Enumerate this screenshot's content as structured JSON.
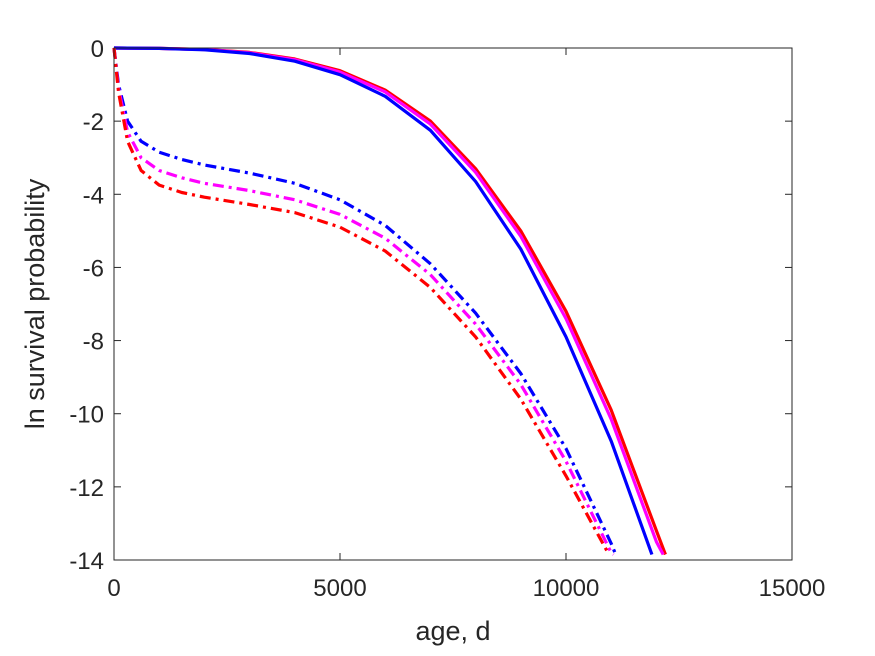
{
  "chart_data": {
    "type": "line",
    "title": "",
    "xlabel": "age, d",
    "ylabel": "ln survival probability",
    "xlim": [
      0,
      15000
    ],
    "ylim": [
      -14,
      0
    ],
    "xticks": [
      0,
      5000,
      10000,
      15000
    ],
    "yticks": [
      0,
      -2,
      -4,
      -6,
      -8,
      -10,
      -12,
      -14
    ],
    "xtick_labels": [
      "0",
      "5000",
      "10000",
      "15000"
    ],
    "ytick_labels": [
      "0",
      "-2",
      "-4",
      "-6",
      "-8",
      "-10",
      "-12",
      "-14"
    ],
    "grid": false,
    "legend": "none",
    "series": [
      {
        "color": "#ff0000",
        "style": "solid",
        "x": [
          0,
          1000,
          2000,
          3000,
          4000,
          5000,
          6000,
          7000,
          8000,
          9000,
          10000,
          11000,
          12000,
          12200
        ],
        "y": [
          0,
          -0.01,
          -0.04,
          -0.12,
          -0.3,
          -0.62,
          -1.15,
          -2.0,
          -3.3,
          -5.0,
          -7.2,
          -9.9,
          -13.2,
          -13.85
        ]
      },
      {
        "color": "#ff00ff",
        "style": "solid",
        "x": [
          0,
          1000,
          2000,
          3000,
          4000,
          5000,
          6000,
          7000,
          8000,
          9000,
          10000,
          11000,
          12000,
          12150
        ],
        "y": [
          0,
          -0.01,
          -0.04,
          -0.13,
          -0.32,
          -0.66,
          -1.2,
          -2.08,
          -3.4,
          -5.15,
          -7.4,
          -10.15,
          -13.5,
          -13.85
        ]
      },
      {
        "color": "#0000ff",
        "style": "solid",
        "x": [
          0,
          1000,
          2000,
          3000,
          4000,
          5000,
          6000,
          7000,
          8000,
          9000,
          10000,
          11000,
          11900
        ],
        "y": [
          0,
          -0.01,
          -0.05,
          -0.15,
          -0.36,
          -0.73,
          -1.32,
          -2.25,
          -3.65,
          -5.5,
          -7.9,
          -10.75,
          -13.85
        ]
      },
      {
        "color": "#0000ff",
        "style": "dashdot",
        "x": [
          0,
          100,
          300,
          600,
          1000,
          1500,
          2000,
          3000,
          4000,
          5000,
          6000,
          7000,
          8000,
          9000,
          10000,
          11000,
          11100
        ],
        "y": [
          0,
          -1.0,
          -2.0,
          -2.55,
          -2.85,
          -3.05,
          -3.2,
          -3.42,
          -3.7,
          -4.15,
          -4.85,
          -5.9,
          -7.25,
          -8.9,
          -10.95,
          -13.55,
          -13.85
        ]
      },
      {
        "color": "#ff00ff",
        "style": "dashdot",
        "x": [
          0,
          100,
          300,
          600,
          1000,
          1500,
          2000,
          3000,
          4000,
          5000,
          6000,
          7000,
          8000,
          9000,
          10000,
          11000,
          11050
        ],
        "y": [
          0,
          -1.1,
          -2.3,
          -3.0,
          -3.35,
          -3.55,
          -3.7,
          -3.9,
          -4.15,
          -4.55,
          -5.2,
          -6.2,
          -7.55,
          -9.2,
          -11.3,
          -13.8,
          -13.85
        ]
      },
      {
        "color": "#ff0000",
        "style": "dashdot",
        "x": [
          0,
          100,
          300,
          600,
          1000,
          1500,
          2000,
          3000,
          4000,
          5000,
          6000,
          7000,
          8000,
          9000,
          10000,
          10950
        ],
        "y": [
          0,
          -1.2,
          -2.55,
          -3.35,
          -3.75,
          -3.95,
          -4.08,
          -4.28,
          -4.5,
          -4.9,
          -5.55,
          -6.55,
          -7.9,
          -9.6,
          -11.7,
          -13.85
        ]
      }
    ]
  }
}
